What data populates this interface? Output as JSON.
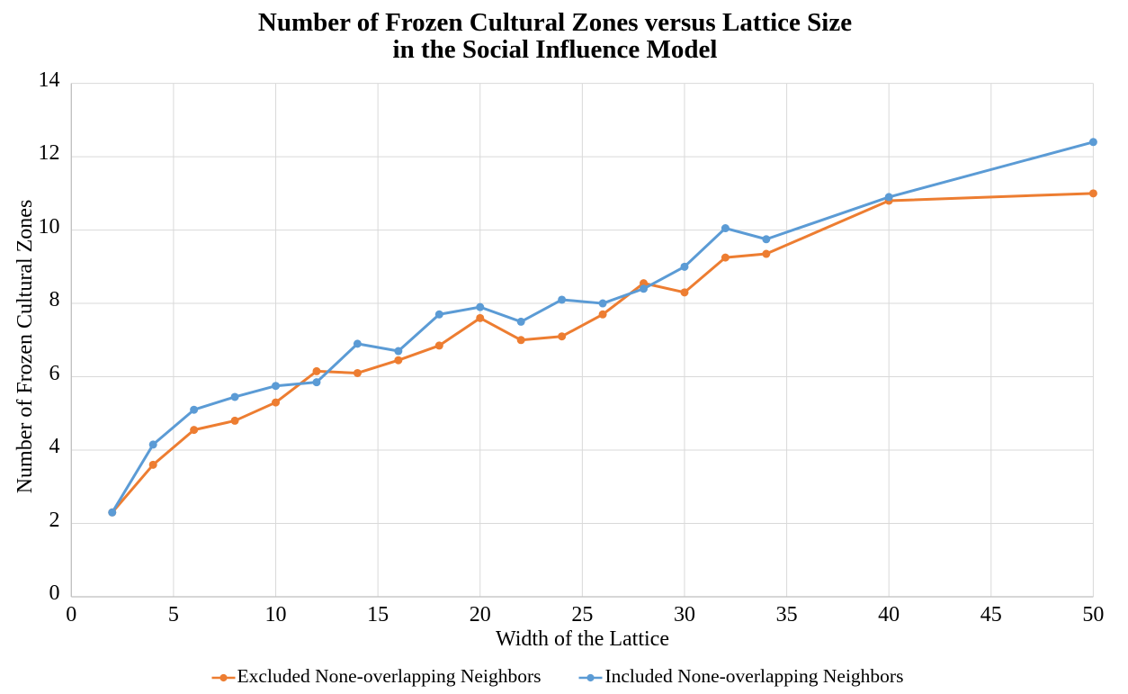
{
  "chart_data": {
    "type": "line",
    "title": "Number of Frozen Cultural Zones versus Lattice Size in the Social Influence Model",
    "title_line1": "Number of Frozen Cultural Zones versus Lattice Size",
    "title_line2": "in the Social Influence Model",
    "xlabel": "Width of the Lattice",
    "ylabel": "Number of Frozen Cultural Zones",
    "xlim": [
      0,
      50
    ],
    "ylim": [
      0,
      14
    ],
    "x_ticks": [
      0,
      5,
      10,
      15,
      20,
      25,
      30,
      35,
      40,
      45,
      50
    ],
    "y_ticks": [
      0,
      2,
      4,
      6,
      8,
      10,
      12,
      14
    ],
    "grid": true,
    "legend_position": "bottom",
    "x": [
      2,
      4,
      6,
      8,
      10,
      12,
      14,
      16,
      18,
      20,
      22,
      24,
      26,
      28,
      30,
      32,
      34,
      40,
      50
    ],
    "series": [
      {
        "name": "Excluded None-overlapping Neighbors",
        "color": "#ED7D31",
        "values": [
          2.3,
          3.6,
          4.55,
          4.8,
          5.3,
          6.15,
          6.1,
          6.45,
          6.85,
          7.6,
          7.0,
          7.1,
          7.7,
          8.55,
          8.3,
          9.25,
          9.35,
          10.8,
          11.0
        ]
      },
      {
        "name": "Included None-overlapping Neighbors",
        "color": "#5B9BD5",
        "values": [
          2.3,
          4.15,
          5.1,
          5.45,
          5.75,
          5.85,
          6.9,
          6.7,
          7.7,
          7.9,
          7.5,
          8.1,
          8.0,
          8.4,
          9.0,
          10.05,
          9.75,
          10.9,
          12.4
        ]
      }
    ],
    "colors": {
      "gridline": "#D9D9D9",
      "axis_line": "#BFBFBF",
      "text": "#000000",
      "background": "#FFFFFF"
    }
  }
}
